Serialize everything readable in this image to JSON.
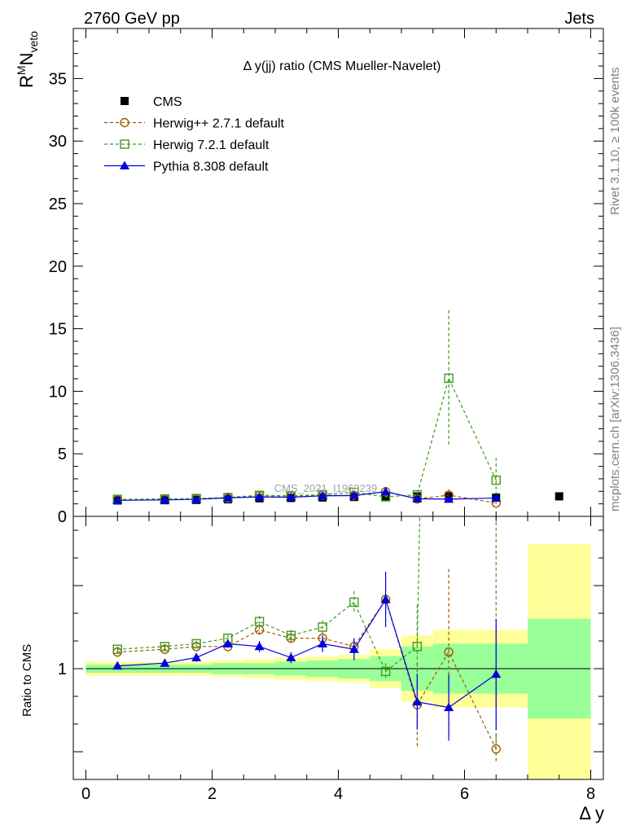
{
  "header": {
    "left": "2760 GeV pp",
    "right": "Jets"
  },
  "side_texts": {
    "rivet": "Rivet 3.1.10, ≥ 100k events",
    "mcplots": "mcplots.cern.ch [arXiv:1306.3436]"
  },
  "chart_data": {
    "type": "scatter",
    "title": "Δ y(jj) ratio (CMS Mueller-Navelet)",
    "watermark": "CMS_2021_I1963239",
    "ylabel_main": "R^M N_veto",
    "ylabel_ratio": "Ratio to CMS",
    "xlabel": "Δ y",
    "xlim": [
      -0.2,
      8.2
    ],
    "ylim_main": [
      0,
      39
    ],
    "ylim_ratio": [
      0.6,
      1.55
    ],
    "x_ticks": [
      0,
      2,
      4,
      6,
      8
    ],
    "y_ticks_main": [
      0,
      5,
      10,
      15,
      20,
      25,
      30,
      35
    ],
    "y_ticks_ratio": [
      1
    ],
    "legend_position": "top-left",
    "bins": [
      [
        0,
        1
      ],
      [
        1,
        1.5
      ],
      [
        1.5,
        2
      ],
      [
        2,
        2.5
      ],
      [
        2.5,
        3
      ],
      [
        3,
        3.5
      ],
      [
        3.5,
        4
      ],
      [
        4,
        4.5
      ],
      [
        4.5,
        5
      ],
      [
        5,
        5.5
      ],
      [
        5.5,
        6
      ],
      [
        6,
        7
      ],
      [
        7,
        8
      ]
    ],
    "data": {
      "name": "CMS",
      "x": [
        0.5,
        1.25,
        1.75,
        2.25,
        2.75,
        3.25,
        3.75,
        4.25,
        4.75,
        5.25,
        5.75,
        6.5,
        7.5
      ],
      "y": [
        1.27,
        1.29,
        1.31,
        1.36,
        1.44,
        1.47,
        1.51,
        1.55,
        1.58,
        1.6,
        1.6,
        1.5,
        1.6
      ],
      "band_stat": [
        0.015,
        0.015,
        0.015,
        0.02,
        0.02,
        0.025,
        0.03,
        0.035,
        0.045,
        0.08,
        0.09,
        0.09,
        0.18
      ],
      "band_total": [
        0.025,
        0.025,
        0.025,
        0.03,
        0.035,
        0.04,
        0.045,
        0.05,
        0.07,
        0.12,
        0.14,
        0.14,
        0.45
      ]
    },
    "series": [
      {
        "name": "Herwig++ 2.7.1 default",
        "color": "#a05a00",
        "marker": "open-circle",
        "line": "dashed",
        "x": [
          0.5,
          1.25,
          1.75,
          2.25,
          2.75,
          3.25,
          3.75,
          4.25,
          4.75,
          5.25,
          5.75,
          6.5
        ],
        "ratio": [
          1.06,
          1.07,
          1.08,
          1.08,
          1.14,
          1.11,
          1.11,
          1.08,
          1.25,
          0.87,
          1.06,
          0.71
        ],
        "ratio_err": [
          0.01,
          0.01,
          0.01,
          0.01,
          0.015,
          0.02,
          0.025,
          0.03,
          0.06,
          0.15,
          0.3,
          0.05
        ]
      },
      {
        "name": "Herwig 7.2.1 default",
        "color": "#3f9a1c",
        "marker": "open-square",
        "line": "dashed",
        "x": [
          0.5,
          1.25,
          1.75,
          2.25,
          2.75,
          3.25,
          3.75,
          4.25,
          4.75,
          5.25,
          5.75,
          6.5
        ],
        "ratio": [
          1.07,
          1.08,
          1.09,
          1.11,
          1.17,
          1.12,
          1.15,
          1.24,
          0.99,
          1.08,
          6.9,
          1.93
        ],
        "ratio_err": [
          0.01,
          0.01,
          0.01,
          0.015,
          0.02,
          0.02,
          0.025,
          0.04,
          0.03,
          0.15,
          3.4,
          1.2
        ]
      },
      {
        "name": "Pythia 8.308 default",
        "color": "#0000dd",
        "marker": "filled-triangle",
        "line": "solid",
        "x": [
          0.5,
          1.25,
          1.75,
          2.25,
          2.75,
          3.25,
          3.75,
          4.25,
          4.75,
          5.25,
          5.75,
          6.5
        ],
        "ratio": [
          1.01,
          1.02,
          1.04,
          1.09,
          1.08,
          1.04,
          1.09,
          1.07,
          1.25,
          0.88,
          0.86,
          0.98
        ],
        "ratio_err": [
          0.01,
          0.01,
          0.015,
          0.015,
          0.02,
          0.02,
          0.03,
          0.04,
          0.1,
          0.1,
          0.12,
          0.2
        ]
      }
    ]
  }
}
